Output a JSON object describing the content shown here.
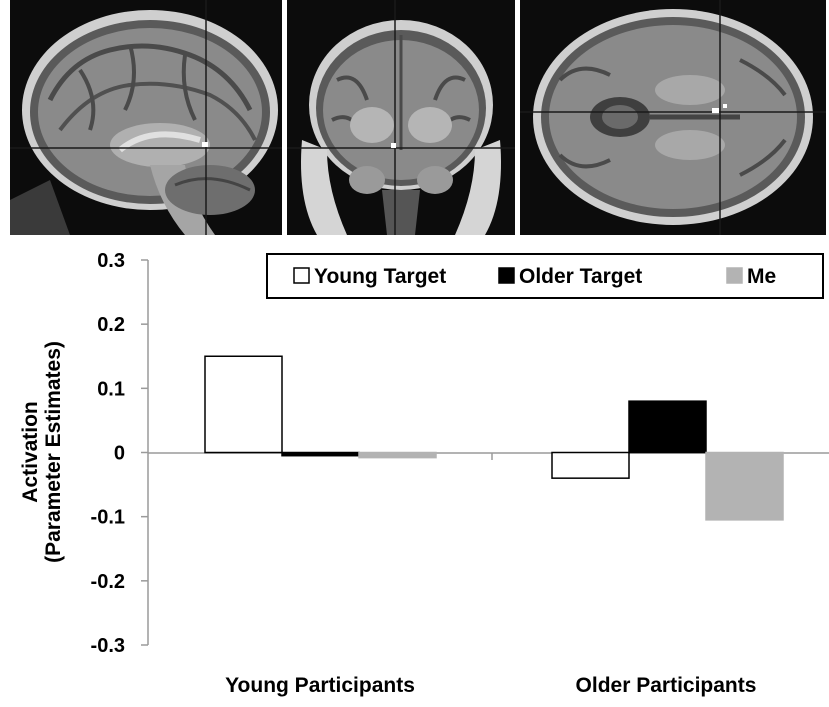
{
  "images": {
    "panels": [
      {
        "view": "sagittal"
      },
      {
        "view": "coronal"
      },
      {
        "view": "axial"
      }
    ]
  },
  "chart_data": {
    "type": "bar",
    "categories": [
      "Young Participants",
      "Older Participants"
    ],
    "series": [
      {
        "name": "Young Target",
        "values": [
          0.15,
          -0.04
        ],
        "color": "#ffffff",
        "stroke": "#000000"
      },
      {
        "name": "Older Target",
        "values": [
          -0.005,
          0.08
        ],
        "color": "#000000",
        "stroke": "#000000"
      },
      {
        "name": "Me",
        "values": [
          -0.008,
          -0.105
        ],
        "color": "#b3b3b3",
        "stroke": "#b3b3b3"
      }
    ],
    "ylabel_line1": "Activation",
    "ylabel_line2": "(Parameter Estimates)",
    "ylim": [
      -0.3,
      0.3
    ],
    "yticks": [
      "0.3",
      "0.2",
      "0.1",
      "0",
      "-0.1",
      "-0.2",
      "-0.3"
    ],
    "legend_position": "top-right",
    "grid": false
  }
}
